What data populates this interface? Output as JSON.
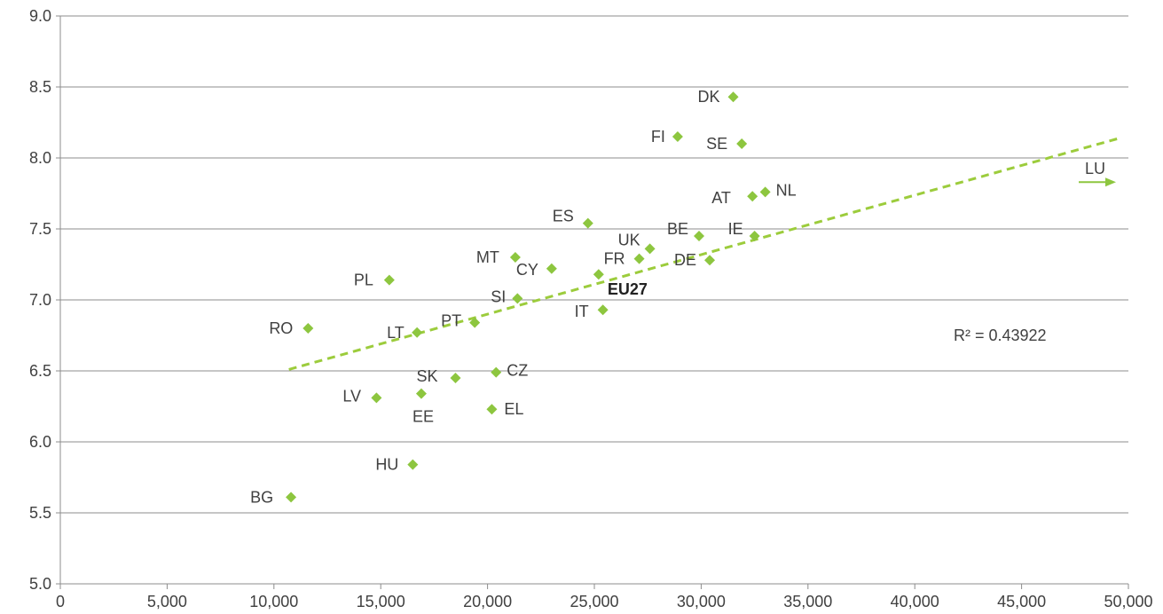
{
  "chart_data": {
    "type": "scatter",
    "xlim": [
      0,
      50000
    ],
    "ylim": [
      5.0,
      9.0
    ],
    "x_ticks": [
      0,
      5000,
      10000,
      15000,
      20000,
      25000,
      30000,
      35000,
      40000,
      45000,
      50000
    ],
    "x_tick_labels": [
      "0",
      "5,000",
      "10,000",
      "15,000",
      "20,000",
      "25,000",
      "30,000",
      "35,000",
      "40,000",
      "45,000",
      "50,000"
    ],
    "y_ticks": [
      5.0,
      5.5,
      6.0,
      6.5,
      7.0,
      7.5,
      8.0,
      8.5,
      9.0
    ],
    "y_tick_labels": [
      "5.0",
      "5.5",
      "6.0",
      "6.5",
      "7.0",
      "7.5",
      "8.0",
      "8.5",
      "9.0"
    ],
    "grid": "horizontal",
    "marker_color": "#8dc63f",
    "trend_color": "#9ccc3c",
    "points": [
      {
        "label": "DK",
        "x": 31500,
        "y": 8.43
      },
      {
        "label": "FI",
        "x": 28900,
        "y": 8.15
      },
      {
        "label": "SE",
        "x": 31900,
        "y": 8.1
      },
      {
        "label": "AT",
        "x": 32400,
        "y": 7.73
      },
      {
        "label": "NL",
        "x": 33000,
        "y": 7.76
      },
      {
        "label": "ES",
        "x": 24700,
        "y": 7.54
      },
      {
        "label": "UK",
        "x": 27600,
        "y": 7.36
      },
      {
        "label": "BE",
        "x": 29900,
        "y": 7.45
      },
      {
        "label": "IE",
        "x": 32500,
        "y": 7.45
      },
      {
        "label": "FR",
        "x": 27100,
        "y": 7.29
      },
      {
        "label": "DE",
        "x": 30400,
        "y": 7.28
      },
      {
        "label": "MT",
        "x": 21300,
        "y": 7.3
      },
      {
        "label": "CY",
        "x": 23000,
        "y": 7.22
      },
      {
        "label": "EU27",
        "x": 25200,
        "y": 7.18
      },
      {
        "label": "PL",
        "x": 15400,
        "y": 7.14
      },
      {
        "label": "SI",
        "x": 21400,
        "y": 7.01
      },
      {
        "label": "IT",
        "x": 25400,
        "y": 6.93
      },
      {
        "label": "RO",
        "x": 11600,
        "y": 6.8
      },
      {
        "label": "PT",
        "x": 19400,
        "y": 6.84
      },
      {
        "label": "LT",
        "x": 16700,
        "y": 6.77
      },
      {
        "label": "CZ",
        "x": 20400,
        "y": 6.49
      },
      {
        "label": "SK",
        "x": 18500,
        "y": 6.45
      },
      {
        "label": "EE",
        "x": 16900,
        "y": 6.34
      },
      {
        "label": "LV",
        "x": 14800,
        "y": 6.31
      },
      {
        "label": "EL",
        "x": 20200,
        "y": 6.23
      },
      {
        "label": "HU",
        "x": 16500,
        "y": 5.84
      },
      {
        "label": "BG",
        "x": 10800,
        "y": 5.61
      }
    ],
    "offscale_point": {
      "label": "LU",
      "x": 49000,
      "y": 7.83,
      "note": "arrow indicating value beyond x-axis range"
    },
    "trendline": {
      "type": "linear",
      "x_start": 10700,
      "y_start": 6.51,
      "x_end": 49600,
      "y_end": 8.14,
      "r_squared_label": "R² = 0.43922"
    }
  }
}
